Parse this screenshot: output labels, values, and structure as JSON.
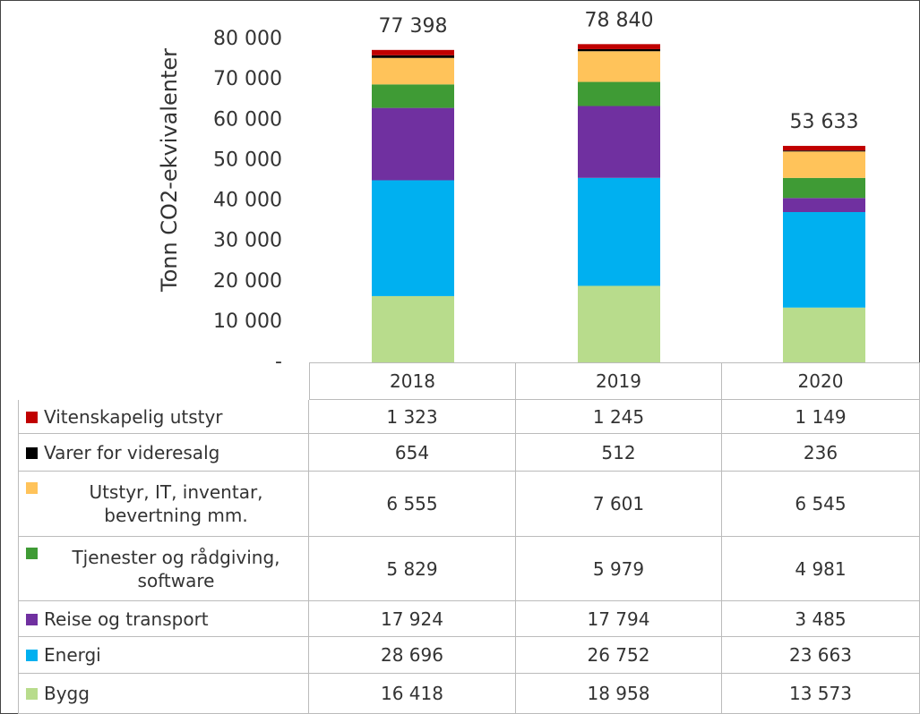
{
  "chart_data": {
    "type": "stacked_bar",
    "y_label": "Tonn CO2-ekvivalenter",
    "categories": [
      "2018",
      "2019",
      "2020"
    ],
    "totals": [
      77398,
      78840,
      53633
    ],
    "total_labels": [
      "77 398",
      "78 840",
      "53 633"
    ],
    "ylim": [
      0,
      88000
    ],
    "yticks": [
      {
        "value": 0,
        "label": "-"
      },
      {
        "value": 10000,
        "label": "10 000"
      },
      {
        "value": 20000,
        "label": "20 000"
      },
      {
        "value": 30000,
        "label": "30 000"
      },
      {
        "value": 40000,
        "label": "40 000"
      },
      {
        "value": 50000,
        "label": "50 000"
      },
      {
        "value": 60000,
        "label": "60 000"
      },
      {
        "value": 70000,
        "label": "70 000"
      },
      {
        "value": 80000,
        "label": "80 000"
      }
    ],
    "series": [
      {
        "name": "Vitenskapelig utstyr",
        "color": "#c00000",
        "values": [
          1323,
          1245,
          1149
        ],
        "value_labels": [
          "1 323",
          "1 245",
          "1 149"
        ]
      },
      {
        "name": "Varer for videresalg",
        "color": "#000000",
        "values": [
          654,
          512,
          236
        ]
      },
      {
        "name": "Utstyr, IT, inventar, bevertning mm.",
        "color": "#ffc35a",
        "values": [
          6555,
          7601,
          6545
        ],
        "value_labels": [
          "6 555",
          "7 601",
          "6 545"
        ]
      },
      {
        "name": "Tjenester og rådgiving, software",
        "color": "#3f9b35",
        "values": [
          5829,
          5979,
          4981
        ],
        "value_labels": [
          "5 829",
          "5 979",
          "4 981"
        ]
      },
      {
        "name": "Reise og transport",
        "color": "#7030a0",
        "values": [
          17924,
          17794,
          3485
        ],
        "value_labels": [
          "17 924",
          "17 794",
          "3 485"
        ]
      },
      {
        "name": "Energi",
        "color": "#00b0f0",
        "values": [
          28696,
          26752,
          23663
        ],
        "value_labels": [
          "28 696",
          "26 752",
          "23 663"
        ]
      },
      {
        "name": "Bygg",
        "color": "#b8dc8c",
        "values": [
          16418,
          18958,
          13573
        ],
        "value_labels": [
          "16 418",
          "18 958",
          "13 573"
        ]
      }
    ]
  }
}
